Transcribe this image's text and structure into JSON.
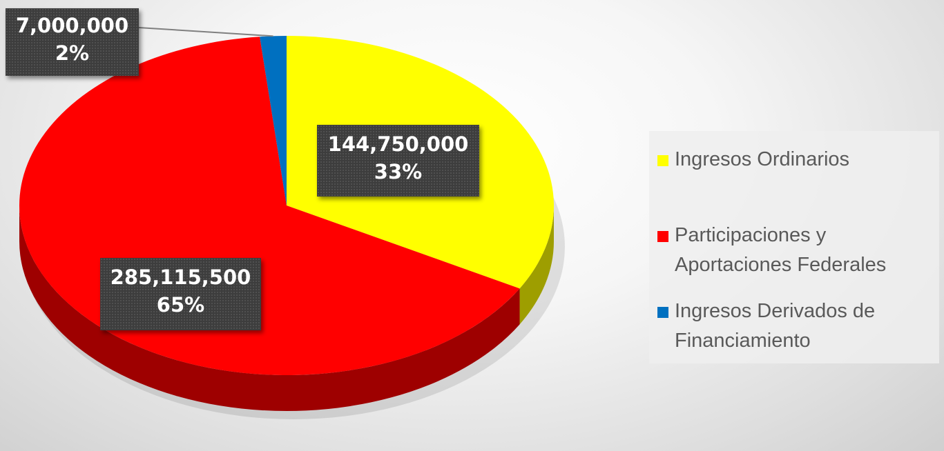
{
  "chart_data": {
    "type": "pie",
    "title": "",
    "categories": [
      "Ingresos Ordinarios",
      "Participaciones y Aportaciones Federales",
      "Ingresos Derivados de Financiamiento"
    ],
    "values": [
      144750000,
      285115500,
      7000000
    ],
    "percent_labels": [
      "33%",
      "65%",
      "2%"
    ],
    "value_labels": [
      "144,750,000",
      "285,115,500",
      "7,000,000"
    ],
    "colors": [
      "#ffff00",
      "#ff0000",
      "#0070c0"
    ],
    "style": "3d",
    "legend": {
      "position": "right",
      "entries": [
        {
          "text_lines": [
            "Ingresos Ordinarios"
          ]
        },
        {
          "text_lines": [
            "Participaciones y",
            "Aportaciones Federales"
          ]
        },
        {
          "text_lines": [
            "Ingresos Derivados de",
            "Financiamiento"
          ]
        }
      ]
    }
  }
}
